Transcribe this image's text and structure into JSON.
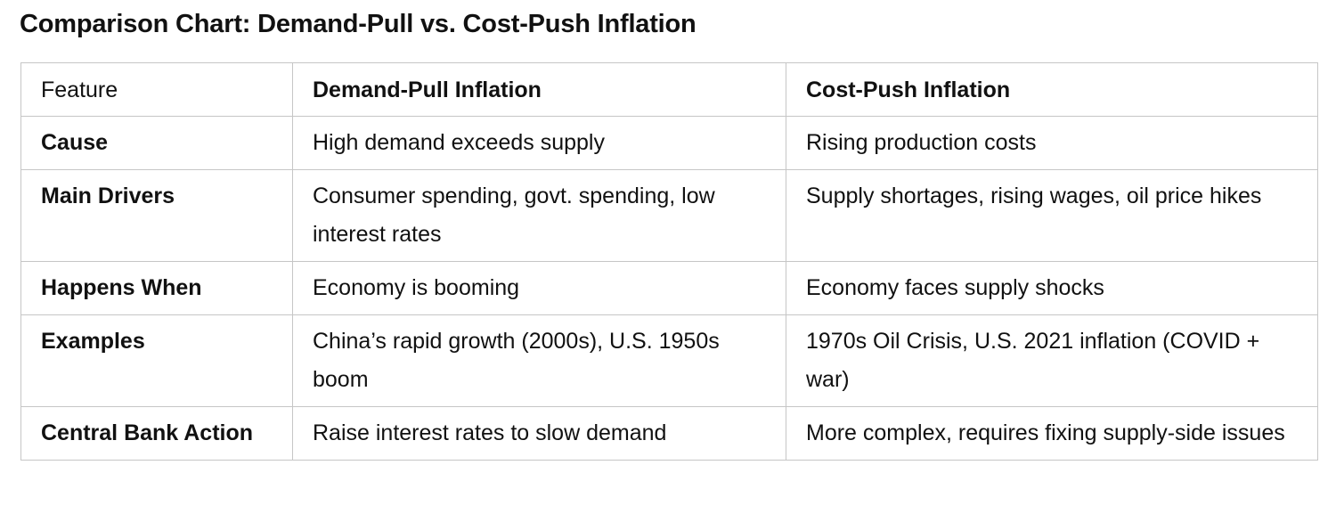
{
  "title": "Comparison Chart: Demand-Pull vs. Cost-Push Inflation",
  "table": {
    "headers": [
      "Feature",
      "Demand-Pull Inflation",
      "Cost-Push Inflation"
    ],
    "rows": [
      [
        "Cause",
        "High demand exceeds supply",
        "Rising production costs"
      ],
      [
        "Main Drivers",
        "Consumer spending, govt. spending, low interest rates",
        "Supply shortages, rising wages, oil price hikes"
      ],
      [
        "Happens When",
        "Economy is booming",
        "Economy faces supply shocks"
      ],
      [
        "Examples",
        "China’s rapid growth (2000s), U.S. 1950s boom",
        "1970s Oil Crisis, U.S. 2021 inflation (COVID + war)"
      ],
      [
        "Central Bank Action",
        "Raise interest rates to slow demand",
        "More complex, requires fixing supply-side issues"
      ]
    ]
  }
}
